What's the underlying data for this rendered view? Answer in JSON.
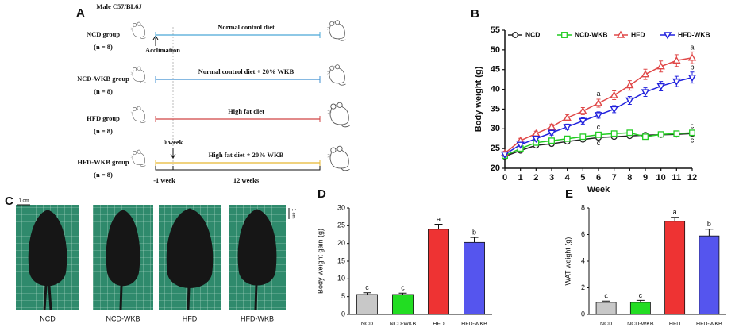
{
  "diagram": {
    "label": "A",
    "strain": "Male C57/BL6J",
    "acclimation": "Acclimation",
    "start": "0 week",
    "phases": [
      "-1 week",
      "12 weeks"
    ],
    "groups": [
      {
        "name": "NCD group",
        "n": "(n = 8)",
        "diet": "Normal control diet",
        "color": "#4aa8d8"
      },
      {
        "name": "NCD-WKB group",
        "n": "(n = 8)",
        "diet": "Normal control diet + 20% WKB",
        "color": "#3f8fd0"
      },
      {
        "name": "HFD group",
        "n": "(n = 8)",
        "diet": "High fat diet",
        "color": "#d04444"
      },
      {
        "name": "HFD-WKB group",
        "n": "(n = 8)",
        "diet": "High fat diet + 20% WKB",
        "color": "#e8b830"
      }
    ]
  },
  "photos": {
    "label": "C",
    "scale_labels": [
      "1 cm",
      "1 cm"
    ],
    "items": [
      "NCD",
      "NCD-WKB",
      "HFD",
      "HFD-WKB"
    ]
  },
  "chart_data": [
    {
      "type": "line",
      "panel": "B",
      "xlabel": "Week",
      "ylabel": "Body weight (g)",
      "x": [
        0,
        1,
        2,
        3,
        4,
        5,
        6,
        7,
        8,
        9,
        10,
        11,
        12
      ],
      "xlim": [
        0,
        12
      ],
      "xticks": [
        0,
        1,
        2,
        3,
        4,
        5,
        6,
        7,
        8,
        9,
        10,
        11,
        12
      ],
      "ylim": [
        20,
        55
      ],
      "yticks": [
        20,
        25,
        30,
        35,
        40,
        45,
        50,
        55
      ],
      "series": [
        {
          "name": "NCD",
          "color": "#222222",
          "marker": "circle",
          "values": [
            23,
            24.5,
            25.8,
            26.2,
            26.8,
            27.3,
            27.8,
            28,
            28.2,
            28.4,
            28.5,
            28.6,
            28.8
          ],
          "errors": [
            0.5,
            0.5,
            0.5,
            0.5,
            0.5,
            0.5,
            0.5,
            0.5,
            0.5,
            0.5,
            0.5,
            0.5,
            0.6
          ]
        },
        {
          "name": "NCD-WKB",
          "color": "#22cc22",
          "marker": "square",
          "values": [
            23.2,
            25,
            26.5,
            27,
            27.5,
            28,
            28.5,
            28.8,
            29,
            28,
            28.6,
            28.8,
            29
          ],
          "errors": [
            0.5,
            0.5,
            0.5,
            0.5,
            0.5,
            0.5,
            0.5,
            0.5,
            0.5,
            0.5,
            0.5,
            0.5,
            0.5
          ]
        },
        {
          "name": "HFD",
          "color": "#e04848",
          "marker": "triangle",
          "values": [
            23.8,
            27,
            28.8,
            30.5,
            32.8,
            34.5,
            36.5,
            38.5,
            41,
            43.8,
            45.8,
            47.3,
            48
          ],
          "errors": [
            0.5,
            0.6,
            0.6,
            0.7,
            0.8,
            0.9,
            1.0,
            1.1,
            1.2,
            1.3,
            1.4,
            1.5,
            1.5
          ]
        },
        {
          "name": "HFD-WKB",
          "color": "#2222dd",
          "marker": "tri-down",
          "values": [
            23.5,
            26,
            27.5,
            29,
            30.5,
            32,
            33.5,
            35,
            37.2,
            39.3,
            40.8,
            42,
            43
          ],
          "errors": [
            0.5,
            0.5,
            0.6,
            0.6,
            0.7,
            0.8,
            0.8,
            0.9,
            1.0,
            1.1,
            1.2,
            1.3,
            1.4
          ]
        }
      ],
      "annotations": [
        {
          "text": "a",
          "x": 6,
          "y": 38.8
        },
        {
          "text": "c",
          "x": 6,
          "y": 30.3
        },
        {
          "text": "c",
          "x": 6,
          "y": 26.3
        },
        {
          "text": "a",
          "x": 12,
          "y": 50.5
        },
        {
          "text": "b",
          "x": 12,
          "y": 45.5
        },
        {
          "text": "c",
          "x": 12,
          "y": 30.6
        },
        {
          "text": "c",
          "x": 12,
          "y": 27
        }
      ]
    },
    {
      "type": "bar",
      "panel": "D",
      "ylabel": "Body weight gain (g)",
      "categories": [
        "NCD",
        "NCD-WKB",
        "HFD",
        "HFD-WKB"
      ],
      "values": [
        5.6,
        5.6,
        24,
        20.3
      ],
      "errors": [
        0.5,
        0.4,
        1.4,
        1.4
      ],
      "colors": [
        "#c8c8c8",
        "#22dd22",
        "#ee3333",
        "#5555ee"
      ],
      "annotations": [
        "c",
        "c",
        "a",
        "b"
      ],
      "ylim": [
        0,
        30
      ],
      "yticks": [
        0,
        5,
        10,
        15,
        20,
        25,
        30
      ]
    },
    {
      "type": "bar",
      "panel": "E",
      "ylabel": "WAT weight (g)",
      "categories": [
        "NCD",
        "NCD-WKB",
        "HFD",
        "HFD-WKB"
      ],
      "values": [
        0.9,
        0.9,
        7.0,
        5.9
      ],
      "errors": [
        0.1,
        0.15,
        0.3,
        0.5
      ],
      "colors": [
        "#c8c8c8",
        "#22dd22",
        "#ee3333",
        "#5555ee"
      ],
      "annotations": [
        "c",
        "c",
        "a",
        "b"
      ],
      "ylim": [
        0,
        8
      ],
      "yticks": [
        0,
        2,
        4,
        6,
        8
      ]
    }
  ]
}
